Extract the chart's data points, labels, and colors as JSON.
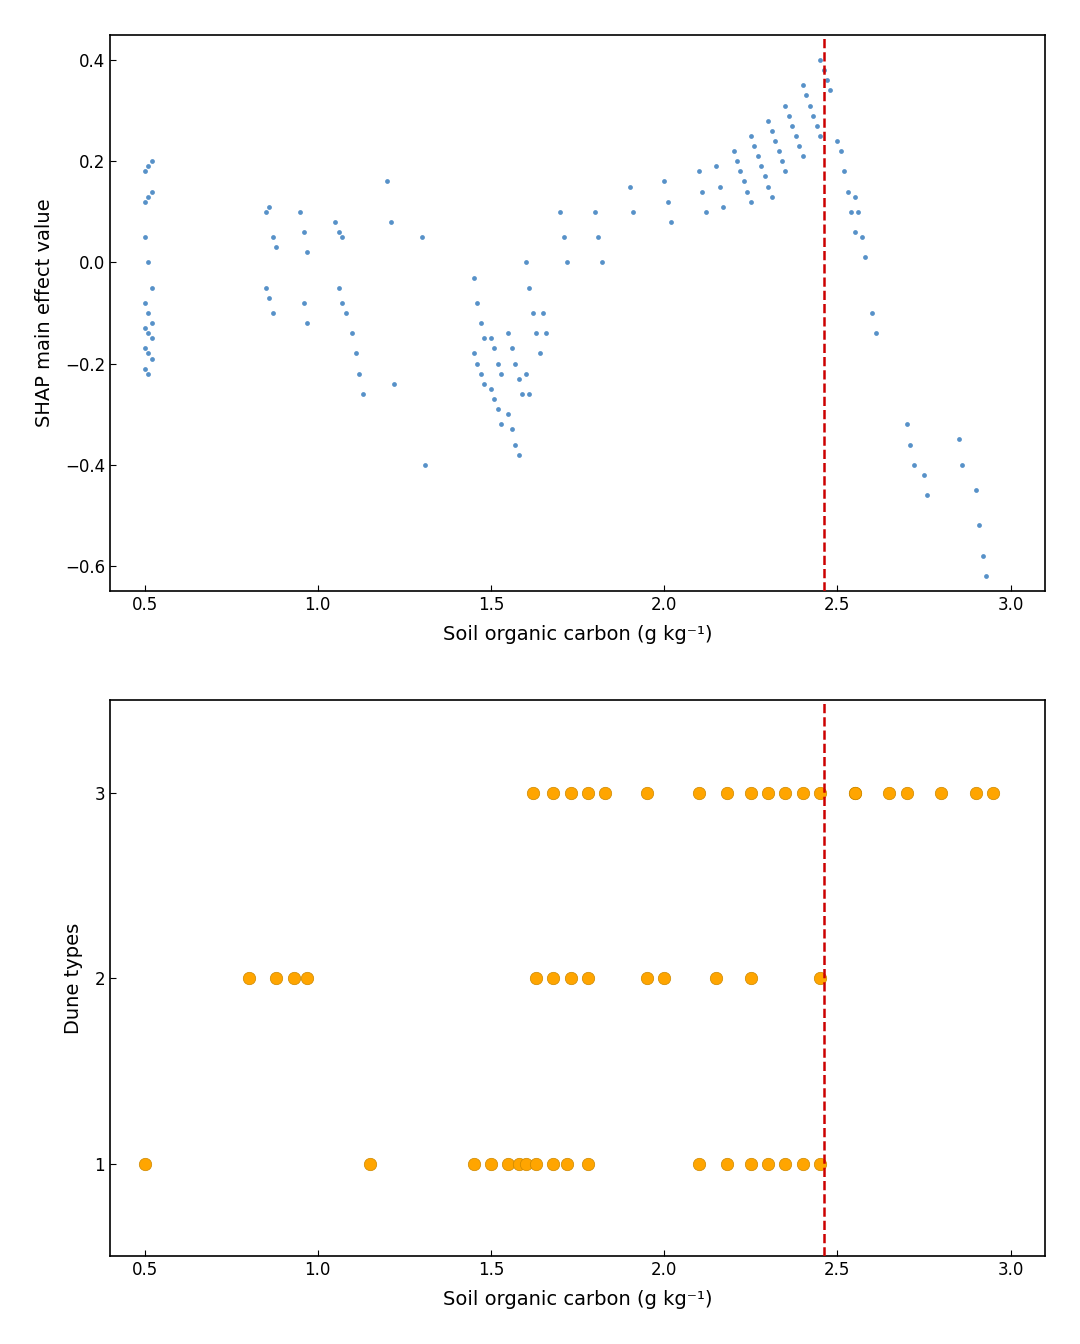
{
  "vline_x": 2.46,
  "vline_color": "#CC0000",
  "top_plot": {
    "title": "",
    "xlabel": "Soil organic carbon (g kg⁻¹)",
    "ylabel": "SHAP main effect value",
    "xlim": [
      0.4,
      3.1
    ],
    "ylim": [
      -0.65,
      0.45
    ],
    "xticks": [
      0.5,
      1.0,
      1.5,
      2.0,
      2.5,
      3.0
    ],
    "yticks": [
      -0.6,
      -0.4,
      -0.2,
      0.0,
      0.2,
      0.4
    ],
    "dot_color": "#3A7EBF",
    "dot_size": 12,
    "scatter_x": [
      0.5,
      0.51,
      0.52,
      0.5,
      0.51,
      0.52,
      0.5,
      0.51,
      0.52,
      0.5,
      0.51,
      0.52,
      0.5,
      0.51,
      0.52,
      0.5,
      0.51,
      0.52,
      0.5,
      0.51,
      0.85,
      0.86,
      0.87,
      0.88,
      0.85,
      0.86,
      0.87,
      0.95,
      0.96,
      0.97,
      0.96,
      0.97,
      1.05,
      1.06,
      1.07,
      1.06,
      1.07,
      1.08,
      1.1,
      1.11,
      1.12,
      1.13,
      1.2,
      1.21,
      1.22,
      1.3,
      1.31,
      1.45,
      1.46,
      1.47,
      1.48,
      1.45,
      1.46,
      1.47,
      1.48,
      1.5,
      1.51,
      1.52,
      1.53,
      1.5,
      1.51,
      1.52,
      1.53,
      1.55,
      1.56,
      1.57,
      1.58,
      1.59,
      1.55,
      1.56,
      1.57,
      1.58,
      1.6,
      1.61,
      1.62,
      1.63,
      1.64,
      1.6,
      1.61,
      1.65,
      1.66,
      1.7,
      1.71,
      1.72,
      1.8,
      1.81,
      1.82,
      1.9,
      1.91,
      2.0,
      2.01,
      2.02,
      2.1,
      2.11,
      2.12,
      2.15,
      2.16,
      2.17,
      2.2,
      2.21,
      2.22,
      2.23,
      2.24,
      2.25,
      2.25,
      2.26,
      2.27,
      2.28,
      2.29,
      2.3,
      2.31,
      2.3,
      2.31,
      2.32,
      2.33,
      2.34,
      2.35,
      2.35,
      2.36,
      2.37,
      2.38,
      2.39,
      2.4,
      2.4,
      2.41,
      2.42,
      2.43,
      2.44,
      2.45,
      2.45,
      2.46,
      2.47,
      2.48,
      2.5,
      2.51,
      2.52,
      2.53,
      2.54,
      2.55,
      2.55,
      2.56,
      2.57,
      2.58,
      2.6,
      2.61,
      2.7,
      2.71,
      2.72,
      2.75,
      2.76,
      2.85,
      2.86,
      2.9,
      2.91,
      2.92,
      2.93
    ],
    "scatter_y": [
      0.18,
      0.19,
      0.2,
      0.12,
      0.13,
      0.14,
      0.05,
      0.0,
      -0.05,
      -0.08,
      -0.1,
      -0.12,
      -0.13,
      -0.14,
      -0.15,
      -0.17,
      -0.18,
      -0.19,
      -0.21,
      -0.22,
      0.1,
      0.11,
      0.05,
      0.03,
      -0.05,
      -0.07,
      -0.1,
      0.1,
      0.06,
      0.02,
      -0.08,
      -0.12,
      0.08,
      0.06,
      0.05,
      -0.05,
      -0.08,
      -0.1,
      -0.14,
      -0.18,
      -0.22,
      -0.26,
      0.16,
      0.08,
      -0.24,
      0.05,
      -0.4,
      -0.03,
      -0.08,
      -0.12,
      -0.15,
      -0.18,
      -0.2,
      -0.22,
      -0.24,
      -0.15,
      -0.17,
      -0.2,
      -0.22,
      -0.25,
      -0.27,
      -0.29,
      -0.32,
      -0.14,
      -0.17,
      -0.2,
      -0.23,
      -0.26,
      -0.3,
      -0.33,
      -0.36,
      -0.38,
      -0.0,
      -0.05,
      -0.1,
      -0.14,
      -0.18,
      -0.22,
      -0.26,
      -0.1,
      -0.14,
      0.1,
      0.05,
      -0.0,
      0.1,
      0.05,
      -0.0,
      0.15,
      0.1,
      0.16,
      0.12,
      0.08,
      0.18,
      0.14,
      0.1,
      0.19,
      0.15,
      0.11,
      0.22,
      0.2,
      0.18,
      0.16,
      0.14,
      0.12,
      0.25,
      0.23,
      0.21,
      0.19,
      0.17,
      0.15,
      0.13,
      0.28,
      0.26,
      0.24,
      0.22,
      0.2,
      0.18,
      0.31,
      0.29,
      0.27,
      0.25,
      0.23,
      0.21,
      0.35,
      0.33,
      0.31,
      0.29,
      0.27,
      0.25,
      0.4,
      0.38,
      0.36,
      0.34,
      0.24,
      0.22,
      0.18,
      0.14,
      0.1,
      0.06,
      0.13,
      0.1,
      0.05,
      0.01,
      -0.1,
      -0.14,
      -0.32,
      -0.36,
      -0.4,
      -0.42,
      -0.46,
      -0.35,
      -0.4,
      -0.45,
      -0.52,
      -0.58,
      -0.62
    ]
  },
  "bottom_plot": {
    "xlabel": "Soil organic carbon (g kg⁻¹)",
    "ylabel": "Dune types",
    "xlim": [
      0.4,
      3.1
    ],
    "ylim": [
      0.5,
      3.5
    ],
    "xticks": [
      0.5,
      1.0,
      1.5,
      2.0,
      2.5,
      3.0
    ],
    "yticks": [
      1,
      2,
      3
    ],
    "dot_color": "#FFA500",
    "dot_size": 80,
    "scatter_x": [
      0.5,
      0.8,
      0.88,
      0.93,
      0.97,
      1.15,
      1.45,
      1.5,
      1.55,
      1.58,
      1.6,
      1.63,
      1.68,
      1.72,
      1.78,
      2.1,
      2.18,
      2.25,
      2.3,
      2.35,
      2.4,
      2.45,
      1.63,
      1.68,
      1.73,
      1.78,
      1.95,
      2.0,
      2.15,
      2.25,
      2.45,
      2.55,
      2.65,
      2.8,
      2.95,
      1.62,
      1.68,
      1.73,
      1.78,
      1.83,
      1.95,
      2.1,
      2.18,
      2.25,
      2.3,
      2.35,
      2.4,
      2.45,
      2.55,
      2.7,
      2.9
    ],
    "scatter_y": [
      1,
      2,
      2,
      2,
      2,
      1,
      1,
      1,
      1,
      1,
      1,
      1,
      1,
      1,
      1,
      1,
      1,
      1,
      1,
      1,
      1,
      1,
      2,
      2,
      2,
      2,
      2,
      2,
      2,
      2,
      2,
      3,
      3,
      3,
      3,
      3,
      3,
      3,
      3,
      3,
      3,
      3,
      3,
      3,
      3,
      3,
      3,
      3,
      3,
      3,
      3
    ]
  }
}
